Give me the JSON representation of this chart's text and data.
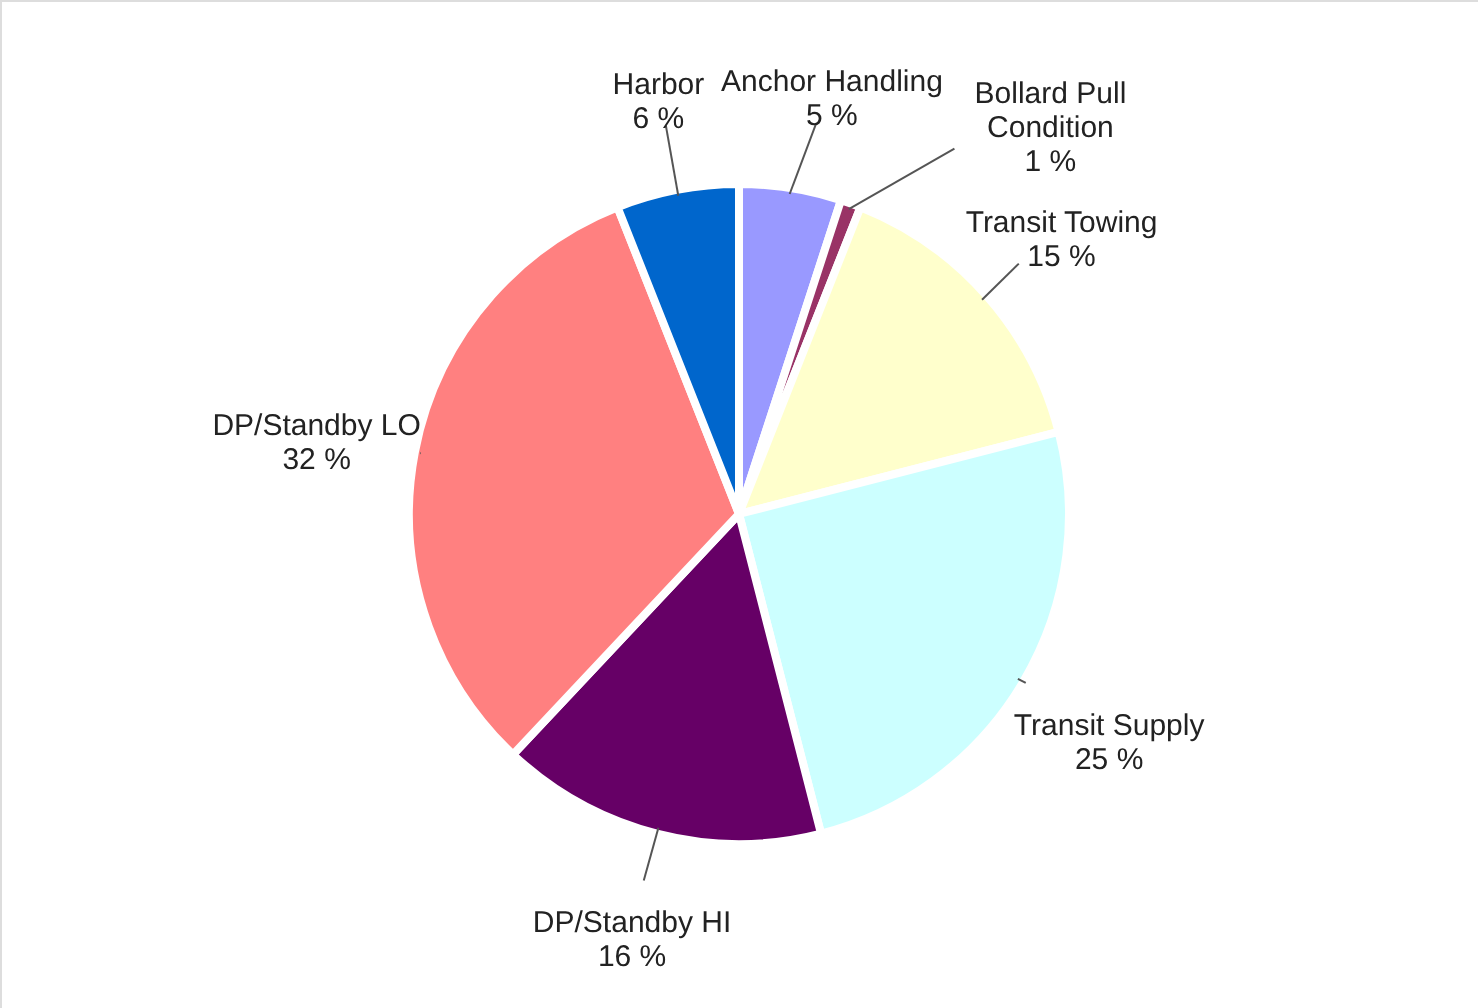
{
  "chart_data": {
    "type": "pie",
    "categories": [
      "Anchor Handling",
      "Bollard Pull Condition",
      "Transit Towing",
      "Transit Supply",
      "DP/Standby HI",
      "DP/Standby LO",
      "Harbor"
    ],
    "values": [
      5,
      1,
      15,
      25,
      16,
      32,
      6
    ],
    "value_labels": [
      "5 %",
      "1 %",
      "15 %",
      "25 %",
      "16 %",
      "32 %",
      "6 %"
    ],
    "colors": [
      "#9999ff",
      "#993366",
      "#ffffcc",
      "#ccffff",
      "#660066",
      "#ff8080",
      "#0066cc"
    ]
  }
}
